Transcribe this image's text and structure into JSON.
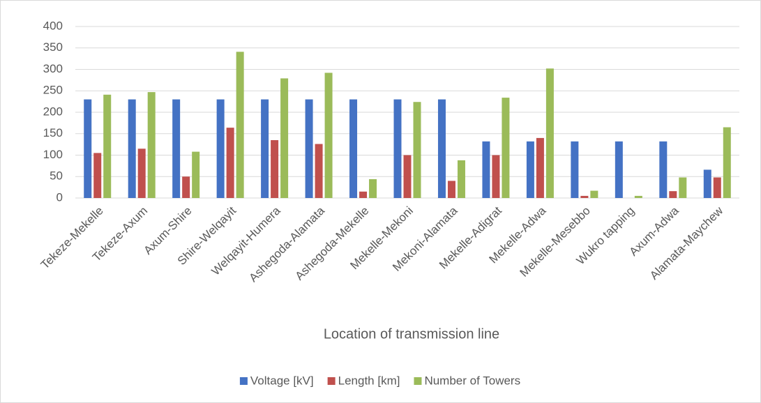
{
  "chart_data": {
    "type": "bar",
    "x_label": "Location of transmission line",
    "categories": [
      "Tekeze-Mekelle",
      "Tekeze-Axum",
      "Axum-Shire",
      "Shire-Welqayit",
      "Welqayit-Humera",
      "Ashegoda-Alamata",
      "Ashegoda-Mekelle",
      "Mekelle-Mekoni",
      "Mekoni-Alamata",
      "Mekelle-Adigrat",
      "Mekelle-Adwa",
      "Mekelle-Mesebbo",
      "Wukro tapping",
      "Axum-Adwa",
      "Alamata-Maychew"
    ],
    "series": [
      {
        "name": "Voltage [kV]",
        "color": "#4472c4",
        "values": [
          230,
          230,
          230,
          230,
          230,
          230,
          230,
          230,
          230,
          132,
          132,
          132,
          132,
          132,
          66
        ]
      },
      {
        "name": "Length [km]",
        "color": "#c0504d",
        "values": [
          105,
          115,
          50,
          164,
          135,
          126,
          15,
          100,
          40,
          100,
          140,
          5,
          0,
          16,
          48
        ]
      },
      {
        "name": "Number of Towers",
        "color": "#9bbb59",
        "values": [
          241,
          247,
          108,
          341,
          279,
          292,
          44,
          224,
          88,
          234,
          302,
          17,
          5,
          48,
          165
        ]
      }
    ],
    "ylim": [
      0,
      400
    ],
    "yticks": [
      0,
      50,
      100,
      150,
      200,
      250,
      300,
      350,
      400
    ],
    "grid": true,
    "legend": "bottom"
  }
}
